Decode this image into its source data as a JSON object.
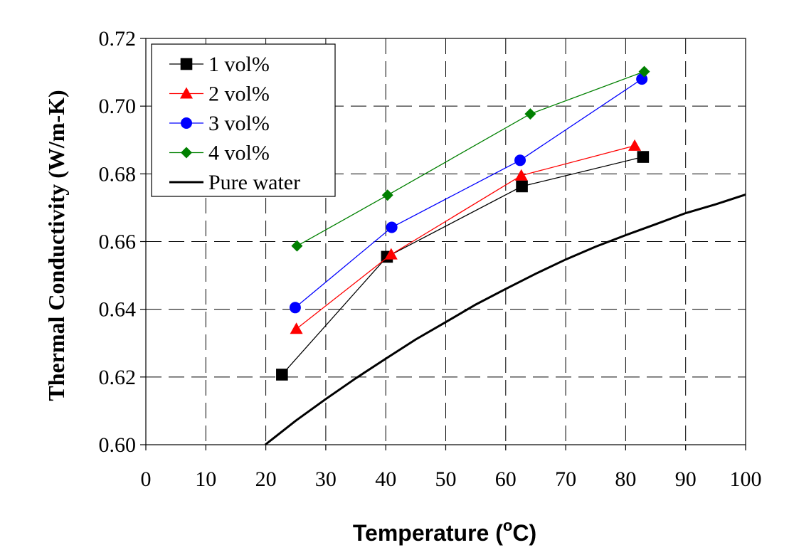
{
  "chart_data": {
    "type": "line",
    "xlabel": {
      "main": "Temperature (",
      "sup": "o",
      "unit": "C)"
    },
    "ylabel": "Thermal Conductivity  (W/m-K)",
    "xlim": [
      0,
      100
    ],
    "ylim": [
      0.6,
      0.72
    ],
    "x_ticks": [
      "0",
      "10",
      "20",
      "30",
      "40",
      "50",
      "60",
      "70",
      "80",
      "90",
      "100"
    ],
    "y_ticks": [
      "0.60",
      "0.62",
      "0.64",
      "0.66",
      "0.68",
      "0.70",
      "0.72"
    ],
    "grid": "dashed, at 40/60/80 on x and 0.64/0.68/0.70 on y",
    "legend_position": "top-left",
    "series": [
      {
        "name": "1 vol%",
        "color": "#000000",
        "marker": "square",
        "x": [
          22.7,
          40.2,
          62.7,
          82.9
        ],
        "y": [
          0.6207,
          0.6555,
          0.6763,
          0.685
        ]
      },
      {
        "name": "2 vol%",
        "color": "#ff0000",
        "marker": "triangle",
        "x": [
          25.1,
          40.9,
          62.6,
          81.5
        ],
        "y": [
          0.6342,
          0.6562,
          0.6795,
          0.6883
        ]
      },
      {
        "name": "3 vol%",
        "color": "#0000ff",
        "marker": "circle",
        "x": [
          24.9,
          41.0,
          62.4,
          82.7
        ],
        "y": [
          0.6405,
          0.6642,
          0.684,
          0.708
        ]
      },
      {
        "name": "4 vol%",
        "color": "#008000",
        "marker": "diamond",
        "x": [
          25.2,
          40.3,
          64.1,
          83.1
        ],
        "y": [
          0.6587,
          0.6737,
          0.6977,
          0.7102
        ]
      },
      {
        "name": "Pure water",
        "color": "#000000",
        "marker": "none",
        "thick": true,
        "x": [
          19.9,
          25,
          30,
          35,
          40,
          45,
          50,
          55,
          60,
          65,
          70,
          75,
          80,
          85,
          90,
          95,
          100
        ],
        "y": [
          0.6,
          0.6071,
          0.6135,
          0.6196,
          0.6254,
          0.6311,
          0.6362,
          0.6414,
          0.646,
          0.6505,
          0.6547,
          0.6585,
          0.6619,
          0.6651,
          0.6684,
          0.671,
          0.6739
        ]
      }
    ]
  }
}
